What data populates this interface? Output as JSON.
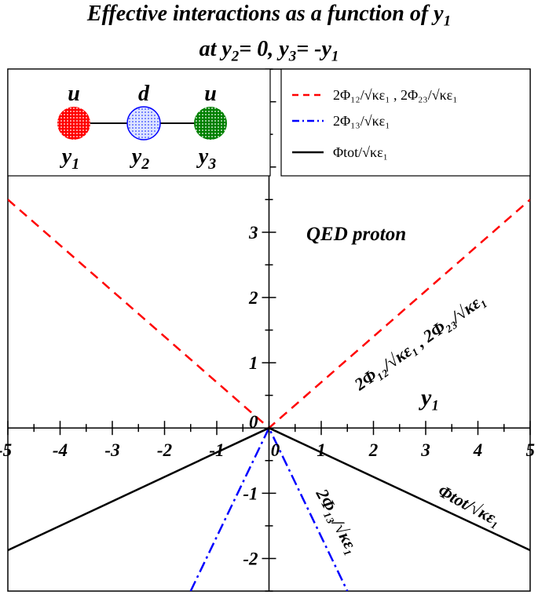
{
  "title": {
    "line1": "Effective interactions as a function of y",
    "line1_sub": "1",
    "line2_a": "at y",
    "line2_a_sub": "2",
    "line2_b": "= 0, y",
    "line2_b_sub": "3",
    "line2_c": "= -y",
    "line2_c_sub": "1"
  },
  "inset": {
    "quarks": [
      {
        "flavor": "u",
        "label": "y",
        "sub": "1",
        "color": "#ff0000"
      },
      {
        "flavor": "d",
        "label": "y",
        "sub": "2",
        "color": "#0000ff"
      },
      {
        "flavor": "u",
        "label": "y",
        "sub": "3",
        "color": "#008000"
      }
    ]
  },
  "legend": {
    "entries": [
      {
        "text": "2Φ₁₂/√κε₁ , 2Φ₂₃/√κε₁",
        "color": "#ff0000",
        "dash": "dashed"
      },
      {
        "text": "2Φ₁₃/√κε₁",
        "color": "#0000ff",
        "dash": "dashdot"
      },
      {
        "text": "Φtot/√κε₁",
        "color": "#000000",
        "dash": "solid"
      }
    ]
  },
  "annotations": {
    "qed": "QED proton",
    "xaxis": "y₁",
    "red_curve": "2Φ₁₂/√κε₁ , 2Φ₂₃/√κε₁",
    "blue_curve": "2Φ₁₃/√κε₁",
    "black_curve": "Φtot/√κε₁"
  },
  "chart_data": {
    "type": "line",
    "title": "Effective interactions as a function of y1 at y2= 0, y3= -y1",
    "xlabel": "y1",
    "ylabel": "",
    "xlim": [
      -5,
      5
    ],
    "ylim": [
      -2.5,
      5.5
    ],
    "xticks": [
      -5,
      -4,
      -3,
      -2,
      -1,
      0,
      1,
      2,
      3,
      4,
      5
    ],
    "yticks": [
      -2,
      -1,
      0,
      1,
      2,
      3
    ],
    "series": [
      {
        "name": "2Φ12/√κε1 , 2Φ23/√κε1",
        "color": "#ff0000",
        "dash": "dashed",
        "x": [
          -5,
          0,
          5
        ],
        "y": [
          3.5,
          0,
          3.5
        ]
      },
      {
        "name": "2Φ13/√κε1",
        "color": "#0000ff",
        "dash": "dashdot",
        "x": [
          -1.5,
          0,
          1.5
        ],
        "y": [
          -2.5,
          0,
          -2.5
        ]
      },
      {
        "name": "Φtot/√κε1",
        "color": "#000000",
        "dash": "solid",
        "x": [
          -5,
          0,
          5
        ],
        "y": [
          -1.875,
          0,
          -1.875
        ]
      }
    ]
  }
}
